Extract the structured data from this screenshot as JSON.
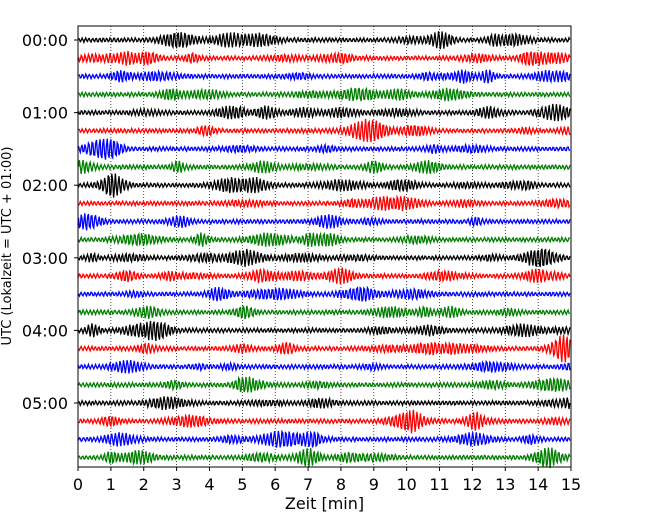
{
  "chart_data": {
    "type": "line",
    "title": "",
    "xlabel": "Zeit  [min]",
    "ylabel": "UTC (Lokalzeit = UTC + 01:00)",
    "xlim": [
      0,
      15
    ],
    "x_ticks": [
      "0",
      "1",
      "2",
      "3",
      "4",
      "5",
      "6",
      "7",
      "8",
      "9",
      "10",
      "11",
      "12",
      "13",
      "14",
      "15"
    ],
    "y_ticks": [
      "00:00",
      "01:00",
      "02:00",
      "03:00",
      "04:00",
      "05:00"
    ],
    "grid": "vertical dotted at each minute",
    "trace_interval_minutes": 15,
    "trace_colors": [
      "#000000",
      "#ff0000",
      "#0000ff",
      "#007f00"
    ],
    "trace_count": 24,
    "traces": [
      {
        "utc_start": "00:00"
      },
      {
        "utc_start": "00:15"
      },
      {
        "utc_start": "00:30"
      },
      {
        "utc_start": "00:45"
      },
      {
        "utc_start": "01:00"
      },
      {
        "utc_start": "01:15"
      },
      {
        "utc_start": "01:30"
      },
      {
        "utc_start": "01:45"
      },
      {
        "utc_start": "02:00"
      },
      {
        "utc_start": "02:15"
      },
      {
        "utc_start": "02:30"
      },
      {
        "utc_start": "02:45"
      },
      {
        "utc_start": "03:00"
      },
      {
        "utc_start": "03:15"
      },
      {
        "utc_start": "03:30"
      },
      {
        "utc_start": "03:45"
      },
      {
        "utc_start": "04:00"
      },
      {
        "utc_start": "04:15"
      },
      {
        "utc_start": "04:30"
      },
      {
        "utc_start": "04:45"
      },
      {
        "utc_start": "05:00"
      },
      {
        "utc_start": "05:15"
      },
      {
        "utc_start": "05:30"
      },
      {
        "utc_start": "05:45"
      }
    ]
  }
}
